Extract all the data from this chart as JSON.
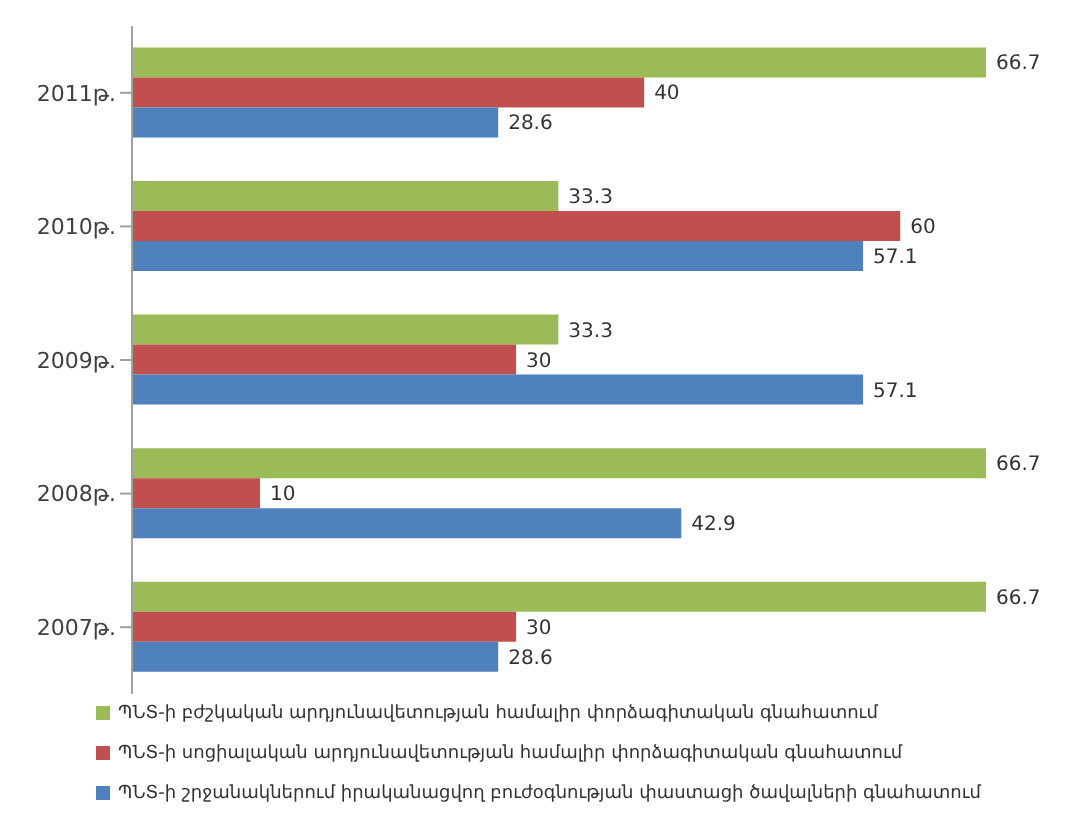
{
  "chart_data": {
    "type": "bar",
    "orientation": "horizontal",
    "categories": [
      "2011թ.",
      "2010թ.",
      "2009թ.",
      "2008թ.",
      "2007թ."
    ],
    "series": [
      {
        "name": "ՊՆՏ-ի բժշկական արդյունավետության համալիր փորձագիտական գնահատում",
        "color": "#9bbb59",
        "values": [
          66.7,
          33.3,
          33.3,
          66.7,
          66.7
        ]
      },
      {
        "name": "ՊՆՏ-ի սոցիալական արդյունավետության համալիր փորձագիտական գնահատում",
        "color": "#c0504d",
        "values": [
          40,
          60,
          30,
          10,
          30
        ]
      },
      {
        "name": "ՊՆՏ-ի շրջանակներում իրականացվող բուժօգնության փաստացի ծավալների գնահատում",
        "color": "#4f81bd",
        "values": [
          28.6,
          57.1,
          57.1,
          42.9,
          28.6
        ]
      }
    ],
    "data_labels": true,
    "legend": "bottom"
  }
}
